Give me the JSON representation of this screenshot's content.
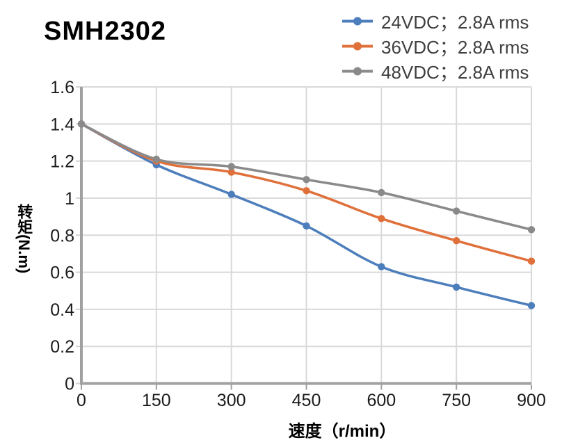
{
  "chart_data": {
    "type": "line",
    "title": "SMH2302",
    "xlabel": "速度（r/min）",
    "ylabel": "转矩(N.m)",
    "x": [
      0,
      150,
      300,
      450,
      600,
      750,
      900
    ],
    "x_tick_labels": [
      "0",
      "150",
      "300",
      "450",
      "600",
      "750",
      "900"
    ],
    "y_ticks": [
      0,
      0.2,
      0.4,
      0.6,
      0.8,
      1,
      1.2,
      1.4,
      1.6
    ],
    "y_tick_labels": [
      "0",
      "0.2",
      "0.4",
      "0.6",
      "0.8",
      "1",
      "1.2",
      "1.4",
      "1.6"
    ],
    "xlim": [
      0,
      900
    ],
    "ylim": [
      0,
      1.6
    ],
    "grid": true,
    "smooth_lines": true,
    "marker": "circle",
    "legend_position": "top-right",
    "series": [
      {
        "id": "24vdc",
        "name": "24VDC；2.8A rms",
        "color": "#4D7EBC",
        "values": [
          1.4,
          1.18,
          1.02,
          0.85,
          0.63,
          0.52,
          0.42
        ]
      },
      {
        "id": "36vdc",
        "name": "36VDC；2.8A rms",
        "color": "#E0703A",
        "values": [
          1.4,
          1.2,
          1.14,
          1.04,
          0.89,
          0.77,
          0.66
        ]
      },
      {
        "id": "48vdc",
        "name": "48VDC；2.8A rms",
        "color": "#8A8A8A",
        "values": [
          1.4,
          1.21,
          1.17,
          1.1,
          1.03,
          0.93,
          0.83
        ]
      }
    ],
    "colors": {
      "gridline": "#D9D9D9",
      "axis_line": "#A0A0A0",
      "y_tick_mark": "#D3D3D3",
      "tick_label": "#1A1A1A",
      "legend_text": "#3F3F3F",
      "title_text": "#000000"
    }
  }
}
